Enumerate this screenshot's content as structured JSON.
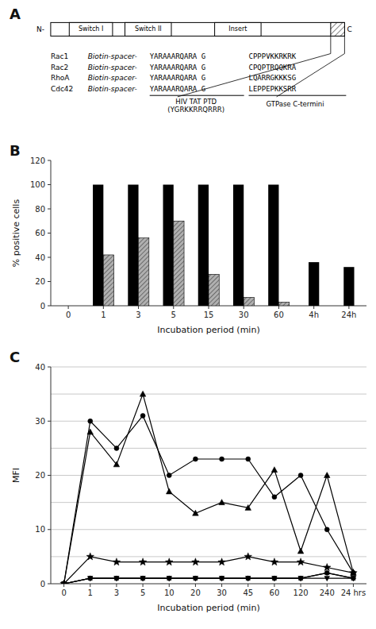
{
  "chart_data": [
    {
      "type": "diagram",
      "title": "A",
      "annotations": [
        "N-",
        "Switch I",
        "Switch II",
        "Insert",
        "C",
        "HIV TAT PTD\n(YGRKKRRQRRR)",
        "GTPase C-termini"
      ],
      "rows": [
        [
          "Rac1",
          "Biotin-spacer-",
          "YARAAARQARA G",
          "CPPPVKKRKRK"
        ],
        [
          "Rac2",
          "Biotin-spacer-",
          "YARAAARQARA G",
          "CPQPTRQQKRA"
        ],
        [
          "RhoA",
          "Biotin-spacer-",
          "YARAAARQARA G",
          "LQARRGKKKSG"
        ],
        [
          "Cdc42",
          "Biotin-spacer-",
          "YARAAARQARA G",
          "LEPPEPKKSRR"
        ]
      ]
    },
    {
      "type": "bar",
      "title": "B",
      "categories": [
        "0",
        "1",
        "3",
        "5",
        "15",
        "30",
        "60",
        "4h",
        "24h"
      ],
      "series": [
        {
          "color": "black",
          "values": [
            0,
            100,
            100,
            100,
            100,
            100,
            100,
            36,
            32
          ]
        },
        {
          "color": "#b0b0b0",
          "values": [
            0,
            42,
            56,
            70,
            26,
            7,
            3,
            0,
            0
          ]
        }
      ],
      "xlabel": "Incubation period (min)",
      "ylabel": "% positive cells",
      "ylim": [
        0,
        120
      ],
      "yticks": [
        0,
        20,
        40,
        60,
        80,
        100,
        120
      ]
    },
    {
      "type": "line",
      "title": "C",
      "categories": [
        "0",
        "1",
        "3",
        "5",
        "10",
        "20",
        "30",
        "45",
        "60",
        "120",
        "240",
        "24 hrs"
      ],
      "series": [
        {
          "color": "black",
          "marker": "circle",
          "values": [
            0,
            30,
            25,
            31,
            20,
            23,
            23,
            23,
            16,
            20,
            10,
            2
          ]
        },
        {
          "color": "black",
          "marker": "triangle",
          "values": [
            0,
            28,
            22,
            35,
            17,
            13,
            15,
            14,
            21,
            6,
            20,
            2
          ]
        },
        {
          "color": "black",
          "marker": "star",
          "values": [
            0,
            5,
            4,
            4,
            4,
            4,
            4,
            5,
            4,
            4,
            3,
            2
          ]
        },
        {
          "color": "black",
          "marker": "square",
          "values": [
            0,
            1,
            1,
            1,
            1,
            1,
            1,
            1,
            1,
            1,
            2,
            1
          ]
        },
        {
          "color": "black",
          "marker": "diamond",
          "values": [
            0,
            1,
            1,
            1,
            1,
            1,
            1,
            1,
            1,
            1,
            2,
            1
          ]
        },
        {
          "color": "black",
          "marker": "triangle-down",
          "values": [
            0,
            1,
            1,
            1,
            1,
            1,
            1,
            1,
            1,
            1,
            1,
            1
          ]
        }
      ],
      "hlines": [
        5,
        10,
        15,
        20,
        25,
        30,
        35,
        40
      ],
      "xlabel": "Incubation period (min)",
      "ylabel": "MFI",
      "ylim": [
        0,
        40
      ],
      "yticks": [
        0,
        10,
        20,
        30,
        40
      ]
    }
  ]
}
